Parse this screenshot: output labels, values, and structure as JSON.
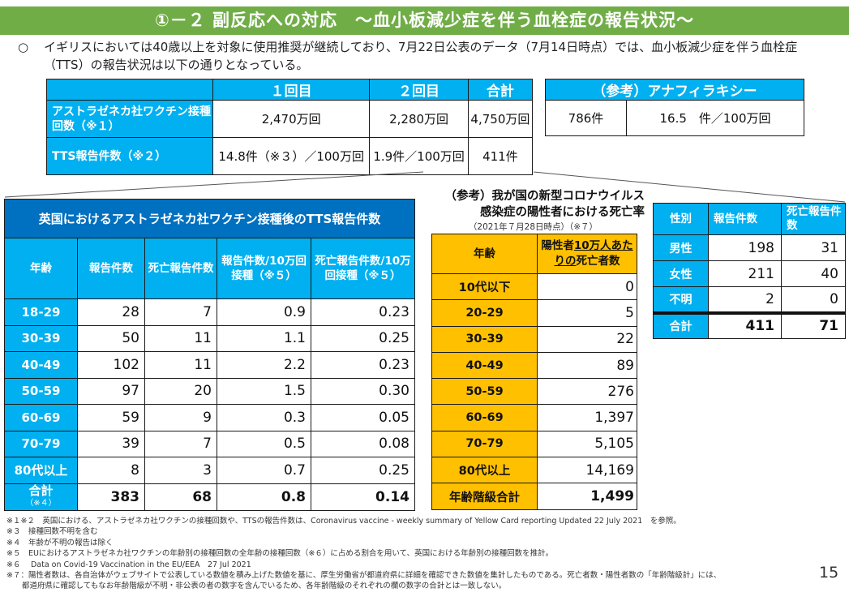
{
  "banner": {
    "title": "①－２ 副反応への対応　～血小板減少症を伴う血栓症の報告状況～",
    "color": "#70ad47"
  },
  "intro": {
    "bullet": "○",
    "text": "イギリスにおいては40歳以上を対象に使用推奨が継続しており、7月22日公表のデータ（7月14日時点）では、血小板減少症を伴う血栓症（TTS）の報告状況は以下の通りとなっている。"
  },
  "top_table": {
    "headers": [
      "",
      "１回目",
      "２回目",
      "合計"
    ],
    "rows": [
      {
        "label": "アストラゼネカ社ワクチン接種回数（※１）",
        "cells": [
          "2,470万回",
          "2,280万回",
          "4,750万回"
        ]
      },
      {
        "label": "TTS報告件数（※２）",
        "cells": [
          "14.8件（※３）／100万回",
          "1.9件／100万回",
          "411件"
        ]
      }
    ],
    "header_color": "#00b0f0"
  },
  "anaphylaxis_table": {
    "header": "（参考）アナフィラキシー",
    "cells": [
      "786件",
      "16.5　件／100万回"
    ]
  },
  "uk_table": {
    "title": "英国におけるアストラゼネカ社ワクチン接種後のTTS報告件数",
    "headers": {
      "age": "年齢",
      "reports": "報告件数",
      "deaths": "死亡報告件数",
      "reports_rate": "報告件数/10万回接種（※５）",
      "deaths_rate": "死亡報告件数/10万回接種（※５）"
    },
    "rows": [
      {
        "age": "18-29",
        "reports": "28",
        "deaths": "7",
        "reports_rate": "0.9",
        "deaths_rate": "0.23"
      },
      {
        "age": "30-39",
        "reports": "50",
        "deaths": "11",
        "reports_rate": "1.1",
        "deaths_rate": "0.25"
      },
      {
        "age": "40-49",
        "reports": "102",
        "deaths": "11",
        "reports_rate": "2.2",
        "deaths_rate": "0.23"
      },
      {
        "age": "50-59",
        "reports": "97",
        "deaths": "20",
        "reports_rate": "1.5",
        "deaths_rate": "0.30"
      },
      {
        "age": "60-69",
        "reports": "59",
        "deaths": "9",
        "reports_rate": "0.3",
        "deaths_rate": "0.05"
      },
      {
        "age": "70-79",
        "reports": "39",
        "deaths": "7",
        "reports_rate": "0.5",
        "deaths_rate": "0.08"
      },
      {
        "age": "80代以上",
        "reports": "8",
        "deaths": "3",
        "reports_rate": "0.7",
        "deaths_rate": "0.25"
      }
    ],
    "total": {
      "age": "合計",
      "note": "（※４）",
      "reports": "383",
      "deaths": "68",
      "reports_rate": "0.8",
      "deaths_rate": "0.14"
    },
    "title_color": "#0070c0",
    "header_color": "#00b0f0"
  },
  "jp_table": {
    "title_line1": "（参考）我が国の新型コロナウイルス",
    "title_line2": "感染症の陽性者における死亡率",
    "subtitle": "（2021年７月28日時点）（※７）",
    "headers": {
      "age": "年齢",
      "rate_part1": "陽性者",
      "rate_part2": "10万人あたりの",
      "rate_part3": "死亡者数"
    },
    "rows": [
      {
        "age": "10代以下",
        "value": "0"
      },
      {
        "age": "20-29",
        "value": "5"
      },
      {
        "age": "30-39",
        "value": "22"
      },
      {
        "age": "40-49",
        "value": "89"
      },
      {
        "age": "50-59",
        "value": "276"
      },
      {
        "age": "60-69",
        "value": "1,397"
      },
      {
        "age": "70-79",
        "value": "5,105"
      },
      {
        "age": "80代以上",
        "value": "14,169"
      }
    ],
    "total": {
      "age": "年齢階級合計",
      "value": "1,499"
    },
    "header_color": "#ffc000"
  },
  "sex_table": {
    "headers": [
      "性別",
      "報告件数",
      "死亡報告件数"
    ],
    "rows": [
      {
        "label": "男性",
        "reports": "198",
        "deaths": "31"
      },
      {
        "label": "女性",
        "reports": "211",
        "deaths": "40"
      },
      {
        "label": "不明",
        "reports": "2",
        "deaths": "0"
      }
    ],
    "total": {
      "label": "合計",
      "reports": "411",
      "deaths": "71"
    }
  },
  "notes": [
    "※１※２　英国における、アストラゼネカ社ワクチンの接種回数や、TTSの報告件数は、Coronavirus vaccine - weekly summary of Yellow Card reporting  Updated 22 July 2021　を参照。",
    "※３　接種回数不明を含む",
    "※４　年齢が不明の報告は除く",
    "※５　EUにおけるアストラゼネカ社ワクチンの年齢別の接種回数の全年齢の接種回数（※６）に占める割合を用いて、英国における年齢別の接種回数を推計。",
    "※６　 Data on Covid-19 Vaccination in the EU/EEA　27 Jul 2021",
    "※７：陽性者数は、各自治体がウェブサイトで公表している数値を積み上げた数値を基に、厚生労働省が都道府県に詳細を確認できた数値を集計したものである。死亡者数・陽性者数の「年齢階級計」には、",
    "都道府県に確認してもなお年齢階級が不明・非公表の者の数字を含んでいるため、各年齢階級のそれぞれの欄の数字の合計とは一致しない。"
  ],
  "page_number": "15"
}
